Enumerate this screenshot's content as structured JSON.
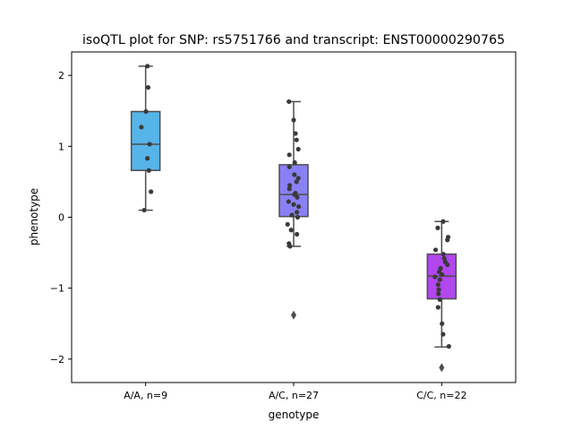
{
  "chart_data": {
    "type": "box",
    "title": "isoQTL plot for SNP: rs5751766 and transcript: ENST00000290765",
    "xlabel": "genotype",
    "ylabel": "phenotype",
    "ylim": [
      -2.33,
      2.33
    ],
    "yticks": [
      {
        "value": -2,
        "label": "−2"
      },
      {
        "value": -1,
        "label": "−1"
      },
      {
        "value": 0,
        "label": "0"
      },
      {
        "value": 1,
        "label": "1"
      },
      {
        "value": 2,
        "label": "2"
      }
    ],
    "grid": false,
    "categories": [
      "A/A, n=9",
      "A/C, n=27",
      "C/C, n=22"
    ],
    "boxes": [
      {
        "category": "A/A, n=9",
        "color": "#56b4e9",
        "whisker_low": 0.1,
        "q1": 0.66,
        "median": 1.03,
        "q3": 1.49,
        "whisker_high": 2.13,
        "outliers": [],
        "points": [
          [
            0.05,
            2.13
          ],
          [
            0.07,
            1.83
          ],
          [
            -0.12,
            1.27
          ],
          [
            0.01,
            1.49
          ],
          [
            0.11,
            1.03
          ],
          [
            0.05,
            0.83
          ],
          [
            0.09,
            0.66
          ],
          [
            0.15,
            0.36
          ],
          [
            -0.04,
            0.1
          ]
        ]
      },
      {
        "category": "A/C, n=27",
        "color": "#8a80f5",
        "whisker_low": -0.41,
        "q1": 0.01,
        "median": 0.32,
        "q3": 0.74,
        "whisker_high": 1.63,
        "outliers": [
          -1.38
        ],
        "points": [
          [
            -0.13,
            1.63
          ],
          [
            0.0,
            1.37
          ],
          [
            0.05,
            1.18
          ],
          [
            0.08,
            1.09
          ],
          [
            0.13,
            0.96
          ],
          [
            -0.12,
            0.88
          ],
          [
            0.03,
            0.77
          ],
          [
            -0.12,
            0.71
          ],
          [
            0.02,
            0.6
          ],
          [
            0.13,
            0.55
          ],
          [
            0.08,
            0.5
          ],
          [
            -0.11,
            0.45
          ],
          [
            -0.12,
            0.4
          ],
          [
            0.05,
            0.34
          ],
          [
            0.02,
            0.32
          ],
          [
            0.1,
            0.28
          ],
          [
            -0.14,
            0.22
          ],
          [
            0.0,
            0.18
          ],
          [
            0.14,
            0.15
          ],
          [
            0.09,
            0.07
          ],
          [
            -0.05,
            0.03
          ],
          [
            0.11,
            0.0
          ],
          [
            -0.17,
            -0.1
          ],
          [
            -0.07,
            -0.18
          ],
          [
            0.09,
            -0.24
          ],
          [
            -0.13,
            -0.37
          ],
          [
            -0.1,
            -0.41
          ]
        ]
      },
      {
        "category": "C/C, n=22",
        "color": "#b147ec",
        "whisker_low": -1.83,
        "q1": -1.15,
        "median": -0.83,
        "q3": -0.52,
        "whisker_high": -0.06,
        "outliers": [
          -2.12
        ],
        "points": [
          [
            0.04,
            -0.06
          ],
          [
            -0.11,
            -0.15
          ],
          [
            0.18,
            -0.28
          ],
          [
            0.16,
            -0.32
          ],
          [
            -0.17,
            -0.46
          ],
          [
            0.05,
            -0.52
          ],
          [
            0.07,
            -0.58
          ],
          [
            0.1,
            -0.63
          ],
          [
            0.16,
            -0.67
          ],
          [
            -0.03,
            -0.72
          ],
          [
            -0.07,
            -0.77
          ],
          [
            0.01,
            -0.81
          ],
          [
            -0.19,
            -0.84
          ],
          [
            -0.05,
            -0.88
          ],
          [
            -0.1,
            -0.95
          ],
          [
            -0.08,
            -1.02
          ],
          [
            -0.09,
            -1.08
          ],
          [
            -0.05,
            -1.16
          ],
          [
            -0.1,
            -1.27
          ],
          [
            0.01,
            -1.5
          ],
          [
            0.04,
            -1.65
          ],
          [
            0.2,
            -1.82
          ]
        ]
      }
    ]
  }
}
